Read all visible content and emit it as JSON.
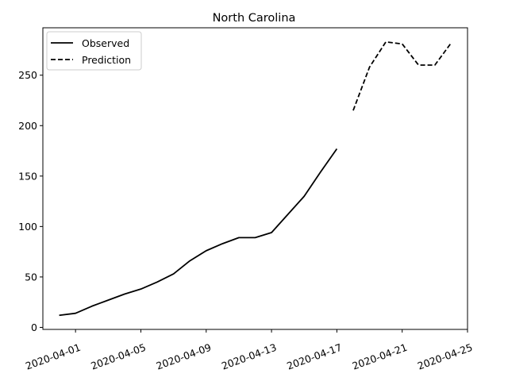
{
  "chart_data": {
    "type": "line",
    "title": "North Carolina",
    "xlabel": "",
    "ylabel": "",
    "x_ticks": [
      "2020-04-01",
      "2020-04-05",
      "2020-04-09",
      "2020-04-13",
      "2020-04-17",
      "2020-04-21",
      "2020-04-25"
    ],
    "y_ticks": [
      0,
      50,
      100,
      150,
      200,
      250
    ],
    "xlim": [
      "2020-03-30",
      "2020-04-25"
    ],
    "ylim": [
      -2,
      297
    ],
    "grid": false,
    "legend_position": "top-left",
    "series": [
      {
        "name": "Observed",
        "style": "solid",
        "color": "#000000",
        "x": [
          "2020-03-31",
          "2020-04-01",
          "2020-04-02",
          "2020-04-03",
          "2020-04-04",
          "2020-04-05",
          "2020-04-06",
          "2020-04-07",
          "2020-04-08",
          "2020-04-09",
          "2020-04-10",
          "2020-04-11",
          "2020-04-12",
          "2020-04-13",
          "2020-04-14",
          "2020-04-15",
          "2020-04-16",
          "2020-04-17"
        ],
        "y": [
          12,
          14,
          21,
          27,
          33,
          38,
          45,
          53,
          66,
          76,
          83,
          89,
          89,
          94,
          112,
          130,
          154,
          177
        ]
      },
      {
        "name": "Prediction",
        "style": "dashed",
        "color": "#000000",
        "x": [
          "2020-04-18",
          "2020-04-19",
          "2020-04-20",
          "2020-04-21",
          "2020-04-22",
          "2020-04-23",
          "2020-04-24"
        ],
        "y": [
          215,
          258,
          283,
          281,
          260,
          260,
          282
        ]
      }
    ]
  }
}
